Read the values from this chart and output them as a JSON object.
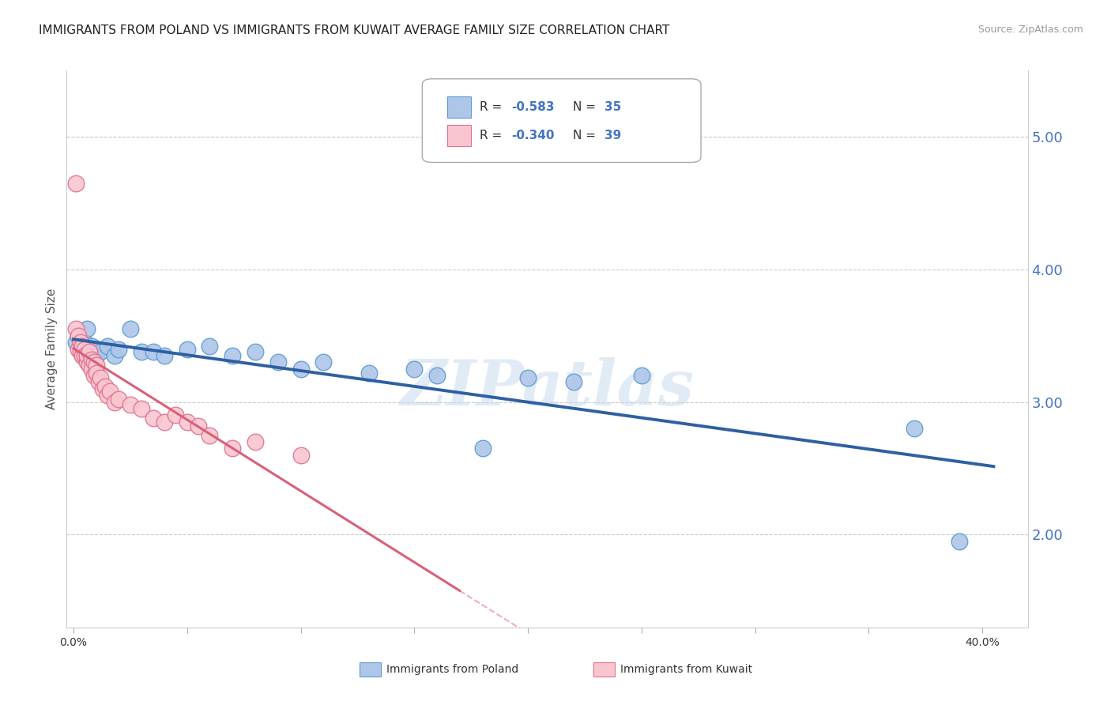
{
  "title": "IMMIGRANTS FROM POLAND VS IMMIGRANTS FROM KUWAIT AVERAGE FAMILY SIZE CORRELATION CHART",
  "source": "Source: ZipAtlas.com",
  "ylabel": "Average Family Size",
  "y_ticks_right": [
    2.0,
    3.0,
    4.0,
    5.0
  ],
  "ylim": [
    1.3,
    5.5
  ],
  "xlim": [
    -0.003,
    0.42
  ],
  "poland_color": "#aec6e8",
  "poland_edge_color": "#5b9bd5",
  "kuwait_color": "#f9c6d0",
  "kuwait_edge_color": "#e07090",
  "poland_line_color": "#2e5fa3",
  "kuwait_line_color": "#d9607a",
  "legend_poland_r": "-0.583",
  "legend_poland_n": "35",
  "legend_kuwait_r": "-0.340",
  "legend_kuwait_n": "39",
  "watermark": "ZIPatlas",
  "poland_scatter_x": [
    0.001,
    0.002,
    0.003,
    0.004,
    0.005,
    0.006,
    0.007,
    0.008,
    0.009,
    0.01,
    0.011,
    0.012,
    0.015,
    0.018,
    0.02,
    0.025,
    0.03,
    0.035,
    0.04,
    0.05,
    0.06,
    0.07,
    0.08,
    0.09,
    0.1,
    0.11,
    0.13,
    0.15,
    0.16,
    0.18,
    0.2,
    0.22,
    0.25,
    0.37,
    0.39
  ],
  "poland_scatter_y": [
    3.45,
    3.5,
    3.4,
    3.35,
    3.45,
    3.55,
    3.38,
    3.42,
    3.3,
    3.35,
    3.4,
    3.38,
    3.42,
    3.35,
    3.4,
    3.55,
    3.38,
    3.38,
    3.35,
    3.4,
    3.42,
    3.35,
    3.38,
    3.3,
    3.25,
    3.3,
    3.22,
    3.25,
    3.2,
    2.65,
    3.18,
    3.15,
    3.2,
    2.8,
    1.95
  ],
  "kuwait_scatter_x": [
    0.001,
    0.001,
    0.002,
    0.002,
    0.003,
    0.003,
    0.004,
    0.004,
    0.005,
    0.005,
    0.006,
    0.006,
    0.007,
    0.007,
    0.008,
    0.008,
    0.009,
    0.009,
    0.01,
    0.01,
    0.011,
    0.012,
    0.013,
    0.014,
    0.015,
    0.016,
    0.018,
    0.02,
    0.025,
    0.03,
    0.035,
    0.04,
    0.045,
    0.05,
    0.055,
    0.06,
    0.07,
    0.08,
    0.1
  ],
  "kuwait_scatter_y": [
    4.65,
    3.55,
    3.5,
    3.4,
    3.45,
    3.38,
    3.35,
    3.42,
    3.4,
    3.35,
    3.3,
    3.35,
    3.28,
    3.38,
    3.32,
    3.25,
    3.3,
    3.2,
    3.28,
    3.22,
    3.15,
    3.18,
    3.1,
    3.12,
    3.05,
    3.08,
    3.0,
    3.02,
    2.98,
    2.95,
    2.88,
    2.85,
    2.9,
    2.85,
    2.82,
    2.75,
    2.65,
    2.7,
    2.6
  ],
  "background_color": "#ffffff",
  "grid_color": "#cccccc",
  "title_color": "#222222",
  "right_axis_color": "#4472c4",
  "title_fontsize": 11,
  "source_fontsize": 9,
  "axis_label_color": "#555555"
}
